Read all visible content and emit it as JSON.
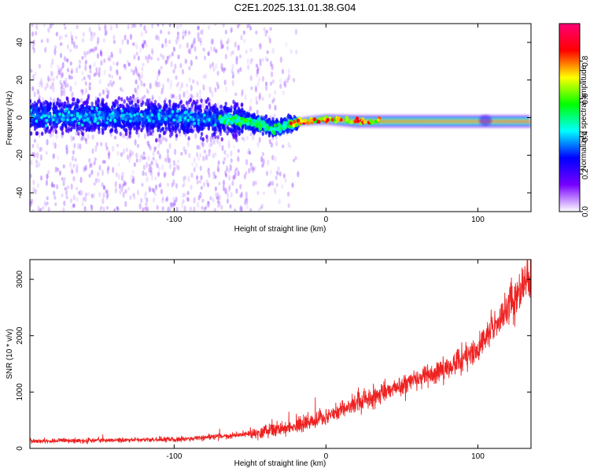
{
  "title": "C2E1.2025.131.01.38.G04",
  "chart_data": [
    {
      "type": "heatmap",
      "name": "spectrogram",
      "xlabel": "Height of straight line (km)",
      "ylabel": "Frequency (Hz)",
      "xlim": [
        -195,
        135
      ],
      "ylim": [
        -50,
        50
      ],
      "xticks": [
        -100,
        0,
        100
      ],
      "xtick_labels": [
        "-100",
        "0",
        "100"
      ],
      "yticks": [
        -40,
        -20,
        0,
        20,
        40
      ],
      "ytick_labels": [
        "-40",
        "-20",
        "0",
        "20",
        "40"
      ],
      "colorbar": {
        "label": "Normalized spectral amplitude",
        "range": [
          0,
          1
        ],
        "ticks": [
          0,
          0.2,
          0.4,
          0.6,
          0.8
        ],
        "tick_labels": [
          "0.0",
          "0.2",
          "0.4",
          "0.6",
          "0.8"
        ],
        "colors": [
          "#ffffff",
          "#7700ff",
          "#0000ff",
          "#00ffff",
          "#00ff00",
          "#ffff00",
          "#ff0000",
          "#ff0077"
        ]
      },
      "center_frequency_trace": {
        "x": [
          -195,
          -100,
          -60,
          -45,
          -35,
          -25,
          -15,
          0,
          20,
          60,
          100,
          135
        ],
        "y": [
          1,
          0,
          -1,
          -3,
          -6,
          -4,
          -2,
          -1,
          -2,
          -2,
          -2,
          -2
        ]
      }
    },
    {
      "type": "line",
      "name": "snr",
      "xlabel": "Height of straight line (km)",
      "ylabel": "SNR (10 * v/v)",
      "xlim": [
        -195,
        135
      ],
      "ylim": [
        0,
        3350
      ],
      "xticks": [
        -100,
        0,
        100
      ],
      "xtick_labels": [
        "-100",
        "0",
        "100"
      ],
      "yticks": [
        0,
        1000,
        2000,
        3000
      ],
      "ytick_labels": [
        "0",
        "1000",
        "2000",
        "3000"
      ],
      "color": "#ee2222",
      "series": [
        {
          "name": "SNR",
          "x": [
            -195,
            -150,
            -100,
            -80,
            -60,
            -50,
            -40,
            -30,
            -20,
            -10,
            0,
            10,
            20,
            30,
            40,
            50,
            60,
            70,
            80,
            90,
            100,
            110,
            120,
            130,
            135
          ],
          "y": [
            130,
            140,
            160,
            190,
            230,
            270,
            310,
            360,
            400,
            470,
            570,
            680,
            800,
            910,
            1020,
            1120,
            1240,
            1330,
            1450,
            1570,
            1780,
            2100,
            2520,
            2900,
            3050
          ]
        }
      ]
    }
  ]
}
